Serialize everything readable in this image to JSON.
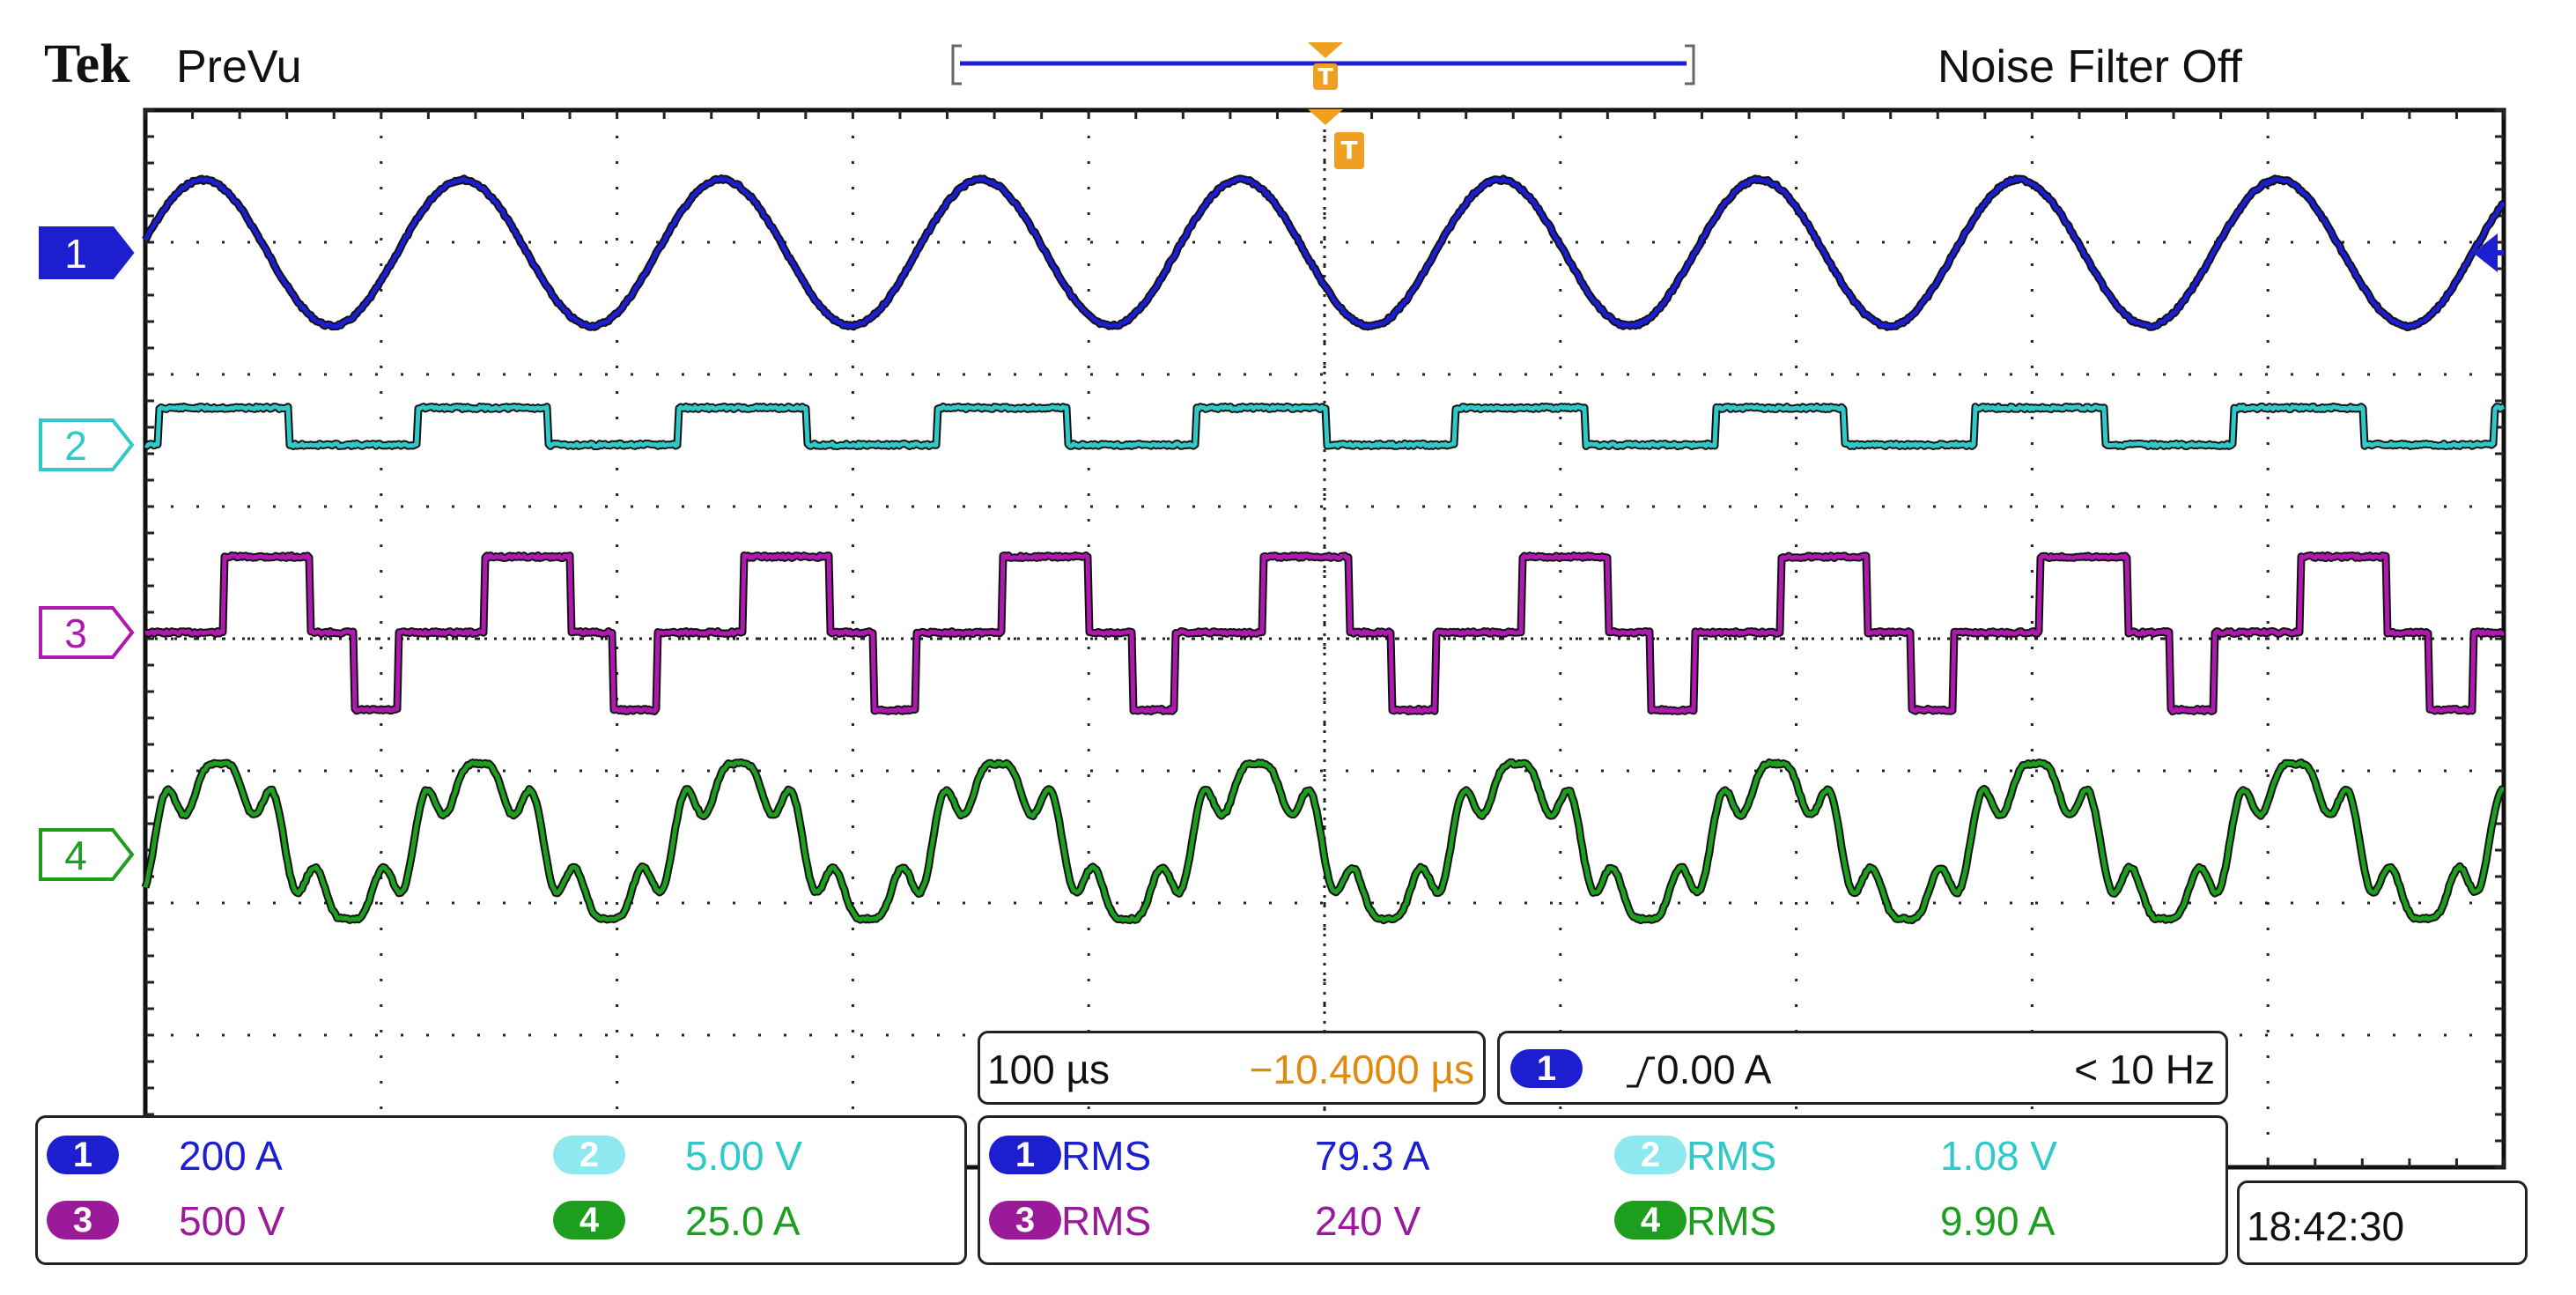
{
  "header": {
    "brand": "Tek",
    "mode": "PreVu",
    "noise_filter": "Noise Filter Off"
  },
  "channels": [
    {
      "id": "1",
      "color": "#1c1ecf",
      "waveform": "sine"
    },
    {
      "id": "2",
      "color": "#2fc9c9",
      "waveform": "square"
    },
    {
      "id": "3",
      "color": "#b019b0",
      "waveform": "stepped"
    },
    {
      "id": "4",
      "color": "#1e9e1e",
      "waveform": "distorted"
    }
  ],
  "trigger_bar": {
    "time_per_div": "100 µs",
    "position": "−10.4000 µs",
    "trigger_channel": "1",
    "trigger_level": "0.00 A",
    "trigger_freq": "< 10 Hz"
  },
  "scales": [
    {
      "ch": "1",
      "value": "200 A"
    },
    {
      "ch": "2",
      "value": "5.00 V"
    },
    {
      "ch": "3",
      "value": "500 V"
    },
    {
      "ch": "4",
      "value": "25.0 A"
    }
  ],
  "measurements": [
    {
      "ch": "1",
      "label": "RMS",
      "value": "79.3 A"
    },
    {
      "ch": "2",
      "label": "RMS",
      "value": "1.08 V"
    },
    {
      "ch": "3",
      "label": "RMS",
      "value": "240 V"
    },
    {
      "ch": "4",
      "label": "RMS",
      "value": "9.90 A"
    }
  ],
  "clock": "18:42:30"
}
